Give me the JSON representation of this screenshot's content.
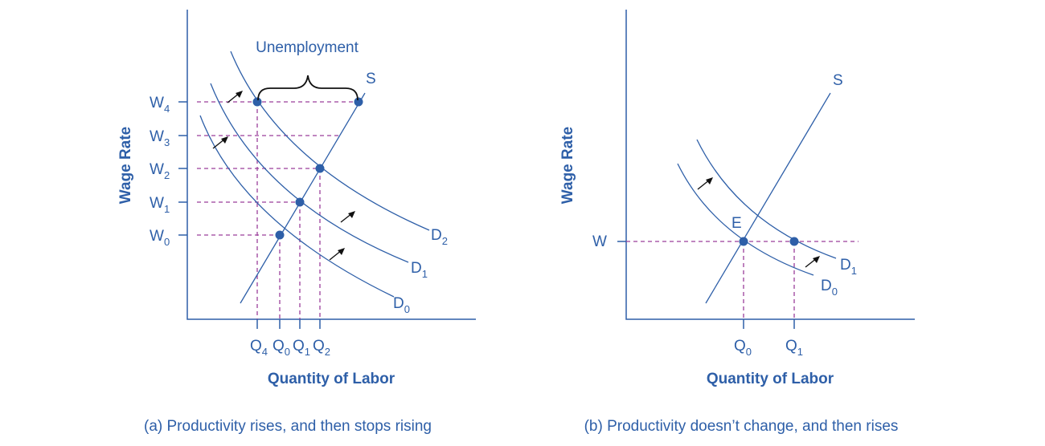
{
  "panel_a": {
    "y_axis_title": "Wage Rate",
    "x_axis_title": "Quantity of Labor",
    "caption": "(a) Productivity rises, and then stops rising",
    "bracket_label": "Unemployment",
    "supply_label": "S",
    "wage_levels": [
      {
        "main": "W",
        "sub": "4"
      },
      {
        "main": "W",
        "sub": "3"
      },
      {
        "main": "W",
        "sub": "2"
      },
      {
        "main": "W",
        "sub": "1"
      },
      {
        "main": "W",
        "sub": "0"
      }
    ],
    "quantity_levels": [
      {
        "main": "Q",
        "sub": "4"
      },
      {
        "main": "Q",
        "sub": "0"
      },
      {
        "main": "Q",
        "sub": "1"
      },
      {
        "main": "Q",
        "sub": "2"
      }
    ],
    "demand_curves": [
      {
        "main": "D",
        "sub": "2"
      },
      {
        "main": "D",
        "sub": "1"
      },
      {
        "main": "D",
        "sub": "0"
      }
    ]
  },
  "panel_b": {
    "y_axis_title": "Wage Rate",
    "x_axis_title": "Quantity of Labor",
    "caption": "(b) Productivity doesn’t change, and then rises",
    "supply_label": "S",
    "wage_label": "W",
    "equilibrium_label": "E",
    "quantity_levels": [
      {
        "main": "Q",
        "sub": "0"
      },
      {
        "main": "Q",
        "sub": "1"
      }
    ],
    "demand_curves": [
      {
        "main": "D",
        "sub": "1"
      },
      {
        "main": "D",
        "sub": "0"
      }
    ]
  },
  "colors": {
    "curve": "#2e5fa8",
    "guide": "#9b3f9b",
    "arrow": "#111111"
  }
}
